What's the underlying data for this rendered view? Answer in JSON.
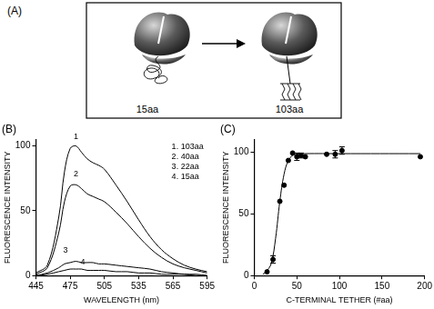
{
  "panel_a": {
    "title": "(A)",
    "states": [
      "15aa",
      "103aa"
    ]
  },
  "chart_data": [
    {
      "type": "line",
      "title": "(B)",
      "x_label": "WAVELENGTH (nm)",
      "y_label": "FLUORESCENCE INTENSITY",
      "xlim": [
        445,
        595
      ],
      "xticks": [
        445,
        475,
        505,
        535,
        565,
        595
      ],
      "ylim": [
        0,
        105
      ],
      "yticks": [
        0,
        50,
        100
      ],
      "grid": false,
      "legend": "upper right",
      "x": [
        445,
        455,
        465,
        470,
        475,
        480,
        485,
        490,
        495,
        500,
        505,
        515,
        525,
        535,
        545,
        555,
        565,
        575,
        585,
        595
      ],
      "series": [
        {
          "name": "1. 103aa",
          "color": "#000000",
          "values": [
            2,
            8,
            45,
            80,
            98,
            100,
            95,
            90,
            87,
            85,
            82,
            70,
            57,
            43,
            30,
            20,
            13,
            8,
            5,
            3
          ]
        },
        {
          "name": "2. 40aa",
          "color": "#000000",
          "values": [
            1,
            6,
            33,
            57,
            69,
            70,
            67,
            63,
            61,
            59,
            57,
            49,
            40,
            30,
            21,
            14,
            9,
            6,
            4,
            2
          ]
        },
        {
          "name": "3. 22aa",
          "color": "#000000",
          "values": [
            0,
            2,
            6,
            9,
            10,
            11,
            10,
            10,
            10,
            9,
            9,
            8,
            7,
            6,
            5,
            3,
            2,
            1,
            1,
            0
          ]
        },
        {
          "name": "4. 15aa",
          "color": "#000000",
          "values": [
            0,
            1,
            3,
            4,
            5,
            5,
            5,
            4,
            4,
            4,
            4,
            3,
            3,
            2,
            2,
            1,
            1,
            1,
            0,
            0
          ]
        }
      ],
      "annotations": [
        {
          "text": "1",
          "x": 480,
          "y": 104
        },
        {
          "text": "2",
          "x": 480,
          "y": 75
        },
        {
          "text": "3",
          "x": 471,
          "y": 16
        },
        {
          "text": "4",
          "x": 486,
          "y": 7
        }
      ]
    },
    {
      "type": "scatter",
      "title": "(C)",
      "x_label": "C-TERMINAL TETHER (#aa)",
      "y_label": "FLUORESCENCE INTENSITY",
      "xlim": [
        0,
        200
      ],
      "xticks": [
        0,
        50,
        100,
        150,
        200
      ],
      "ylim": [
        0,
        110
      ],
      "yticks": [
        0,
        50,
        100
      ],
      "grid": false,
      "series": [
        {
          "type": "scatter",
          "color": "#000000",
          "marker": "circle",
          "x": [
            15,
            22,
            30,
            35,
            40,
            45,
            50,
            55,
            60,
            85,
            95,
            103,
            195
          ],
          "values": [
            3,
            13,
            60,
            73,
            93,
            99,
            96,
            97,
            96,
            98,
            98,
            101,
            96
          ],
          "errors": [
            null,
            3,
            null,
            null,
            null,
            null,
            3,
            2,
            null,
            null,
            3,
            3,
            null
          ]
        },
        {
          "type": "line",
          "color": "#000000",
          "line_style": "solid",
          "x": [
            10,
            15,
            20,
            25,
            30,
            35,
            40,
            45,
            50,
            60,
            100,
            195
          ],
          "values": [
            1,
            4,
            10,
            30,
            60,
            82,
            93,
            97,
            98,
            98.5,
            98.5,
            98.5
          ]
        }
      ]
    }
  ]
}
